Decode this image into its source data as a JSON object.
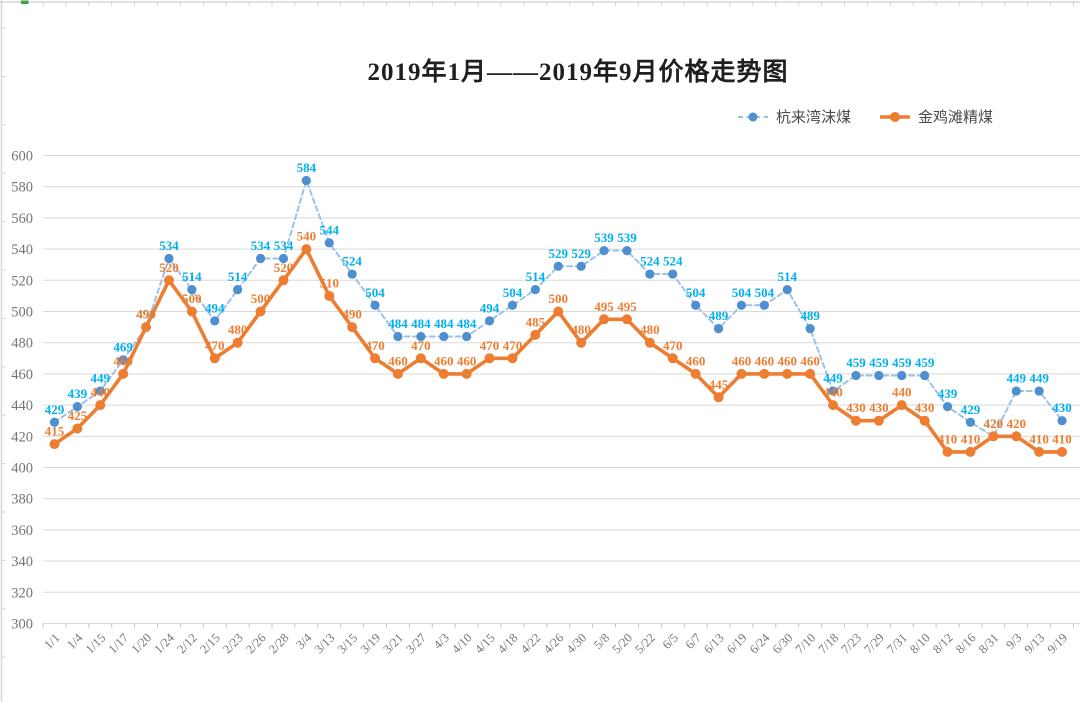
{
  "title": "2019年1月——2019年9月价格走势图",
  "legend": {
    "items": [
      {
        "label": "杭来湾沫煤"
      },
      {
        "label": "金鸡滩精煤"
      }
    ]
  },
  "chart_data": {
    "type": "line",
    "title": "2019年1月——2019年9月价格走势图",
    "categories": [
      "1/1",
      "1/4",
      "1/15",
      "1/17",
      "1/20",
      "1/24",
      "2/12",
      "2/15",
      "2/23",
      "2/26",
      "2/28",
      "3/4",
      "3/13",
      "3/15",
      "3/19",
      "3/21",
      "3/27",
      "4/3",
      "4/10",
      "4/15",
      "4/18",
      "4/22",
      "4/26",
      "4/30",
      "5/8",
      "5/20",
      "5/22",
      "6/5",
      "6/7",
      "6/13",
      "6/19",
      "6/24",
      "6/30",
      "7/10",
      "7/18",
      "7/23",
      "7/29",
      "7/31",
      "8/10",
      "8/12",
      "8/16",
      "8/31",
      "9/3",
      "9/13",
      "9/19"
    ],
    "series": [
      {
        "name": "杭来湾沫煤",
        "style": "dashed",
        "marker": "circle",
        "line_color": "#9CC3E5",
        "marker_color": "#4E8FD0",
        "label_color": "#00B0F0",
        "values": [
          429,
          439,
          449,
          469,
          490,
          534,
          514,
          494,
          514,
          534,
          534,
          584,
          544,
          524,
          504,
          484,
          484,
          484,
          484,
          494,
          504,
          514,
          529,
          529,
          539,
          539,
          524,
          524,
          504,
          489,
          504,
          504,
          514,
          489,
          449,
          459,
          459,
          459,
          459,
          439,
          429,
          420,
          449,
          449,
          430
        ]
      },
      {
        "name": "金鸡滩精煤",
        "style": "solid",
        "marker": "circle",
        "line_color": "#ED7D31",
        "marker_color": "#ED7D31",
        "label_color": "#ED7D31",
        "values": [
          415,
          425,
          440,
          460,
          490,
          520,
          500,
          470,
          480,
          500,
          520,
          540,
          510,
          490,
          470,
          460,
          470,
          460,
          460,
          470,
          470,
          485,
          500,
          480,
          495,
          495,
          480,
          470,
          460,
          445,
          460,
          460,
          460,
          460,
          440,
          430,
          430,
          440,
          430,
          410,
          410,
          420,
          420,
          410,
          410
        ]
      }
    ],
    "ylim": [
      300,
      600
    ],
    "ytick_step": 20,
    "data_labels": true,
    "grid": "horizontal",
    "legend_position": "top-right",
    "gridline_color": "#D9D9D9",
    "axis_tick_color": "#BFBFBF",
    "axis_text_color": "#757575",
    "edge_ruler_color": "#D6D6D6",
    "edge_green_mark_color": "#43A047"
  }
}
